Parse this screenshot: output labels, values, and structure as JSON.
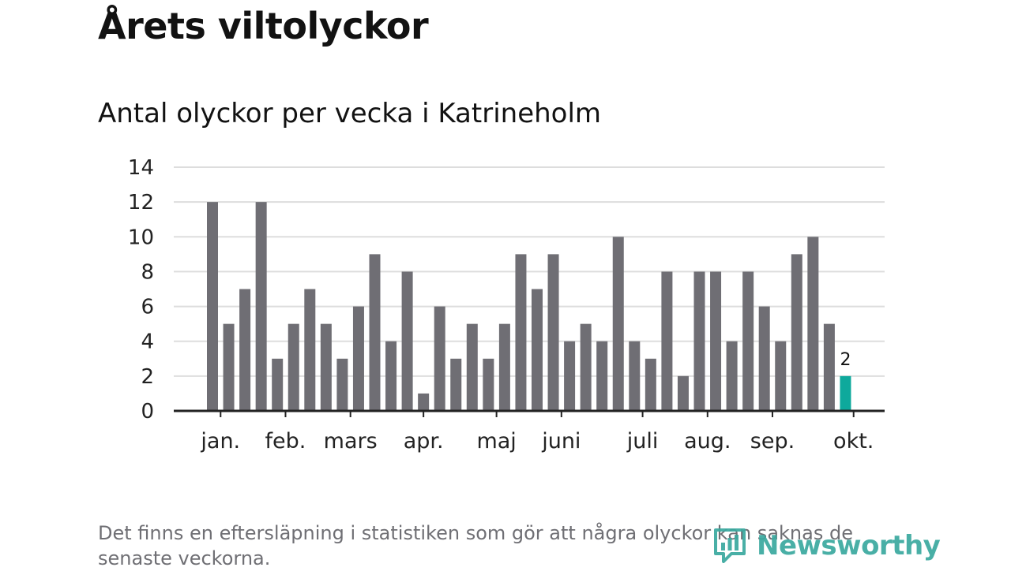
{
  "header": {
    "title": "Årets viltolyckor",
    "subtitle": "Antal olyckor per vecka i Katrineholm"
  },
  "footnote": "Det finns en eftersläpning i statistiken som gör att några olyckor kan saknas de senaste veckorna.",
  "logo": {
    "text": "Newsworthy"
  },
  "colors": {
    "bar": "#6f6e74",
    "highlight": "#0ea99c",
    "grid": "#dddddd",
    "axis": "#222222",
    "logo": "#3aa99f"
  },
  "chart_data": {
    "type": "bar",
    "title": "Antal olyckor per vecka i Katrineholm",
    "xlabel": "",
    "ylabel": "",
    "ylim": [
      0,
      14
    ],
    "yticks": [
      0,
      2,
      4,
      6,
      8,
      10,
      12,
      14
    ],
    "grid": true,
    "values": [
      12,
      5,
      7,
      12,
      3,
      5,
      7,
      5,
      3,
      6,
      9,
      4,
      8,
      1,
      6,
      3,
      5,
      3,
      5,
      9,
      7,
      9,
      4,
      5,
      4,
      10,
      4,
      3,
      8,
      2,
      8,
      8,
      4,
      8,
      6,
      4,
      9,
      10,
      5,
      2
    ],
    "highlight_index": 39,
    "highlight_label": "2",
    "month_labels": [
      "jan.",
      "feb.",
      "mars",
      "apr.",
      "maj",
      "juni",
      "juli",
      "aug.",
      "sep.",
      "okt."
    ],
    "month_tick_weeks": [
      0.5,
      4.5,
      8.5,
      13.0,
      17.5,
      21.5,
      26.5,
      30.5,
      34.5,
      39.5
    ]
  }
}
